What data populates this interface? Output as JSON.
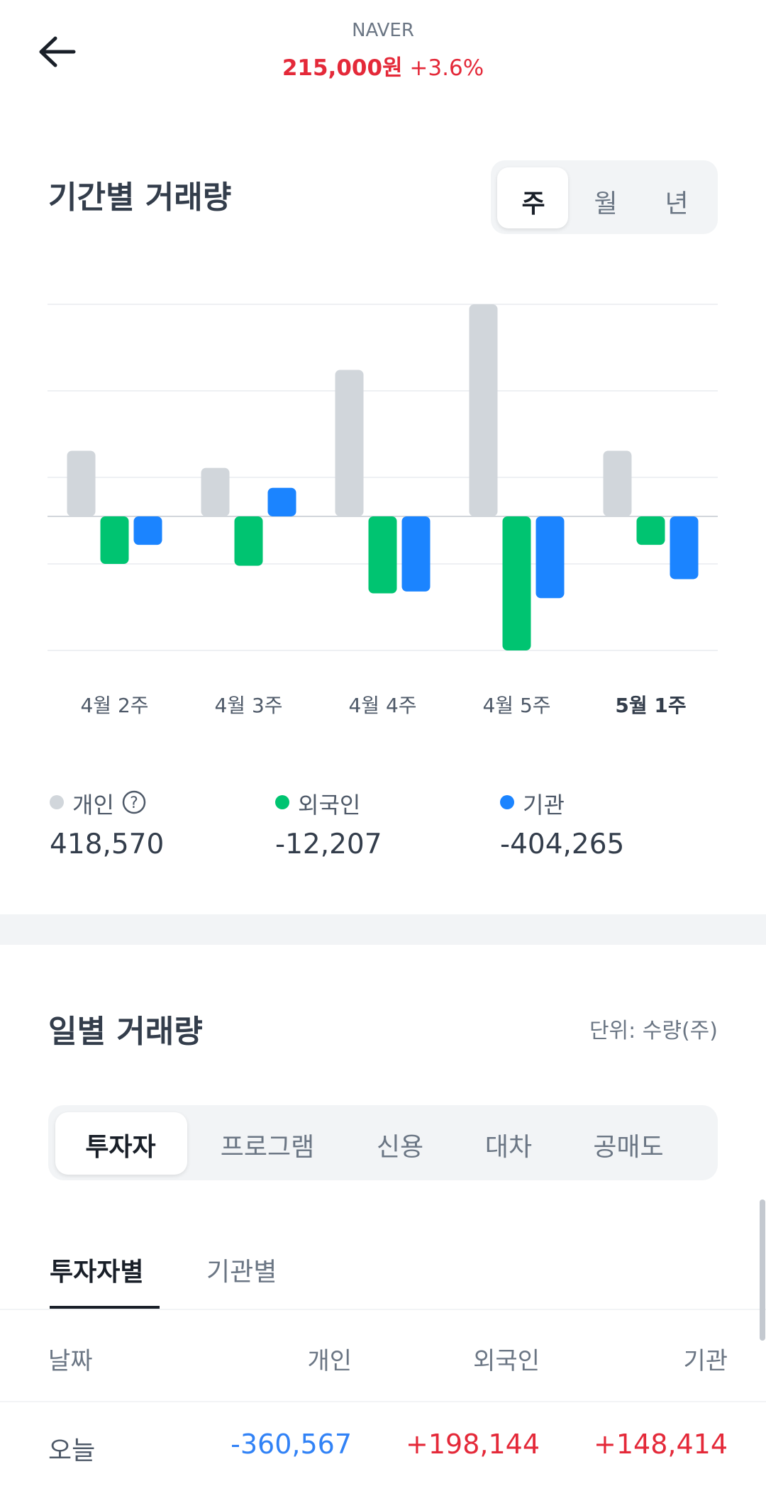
{
  "header": {
    "title": "NAVER",
    "price": "215,000원",
    "change": "+3.6%"
  },
  "chart_data": {
    "type": "bar",
    "title": "기간별 거래량",
    "categories": [
      "4월 2주",
      "4월 3주",
      "4월 4주",
      "4월 5주",
      "5월 1주"
    ],
    "series": [
      {
        "name": "개인",
        "color": "#d1d6db",
        "values": [
          69,
          51,
          154,
          223,
          69
        ]
      },
      {
        "name": "외국인",
        "color": "#00c471",
        "values": [
          -50,
          -52,
          -81,
          -141,
          -30
        ]
      },
      {
        "name": "기관",
        "color": "#1b84ff",
        "values": [
          -30,
          30,
          -79,
          -86,
          -66
        ]
      }
    ],
    "ylim": [
      -141,
      223
    ],
    "yticks": [
      -141,
      -50,
      41,
      132,
      223
    ],
    "grid": true
  },
  "period_tabs": [
    "주",
    "월",
    "년"
  ],
  "summary_values": [
    "418,570",
    "-12,207",
    "-404,265"
  ],
  "daily": {
    "title": "일별 거래량",
    "unit": "단위: 수량(주)",
    "tabs": [
      "투자자",
      "프로그램",
      "신용",
      "대차",
      "공매도"
    ],
    "subtabs": [
      "투자자별",
      "기관별"
    ],
    "columns": [
      "날짜",
      "개인",
      "외국인",
      "기관"
    ],
    "rows": [
      [
        "오늘",
        "-360,567",
        "+198,144",
        "+148,414"
      ]
    ]
  }
}
